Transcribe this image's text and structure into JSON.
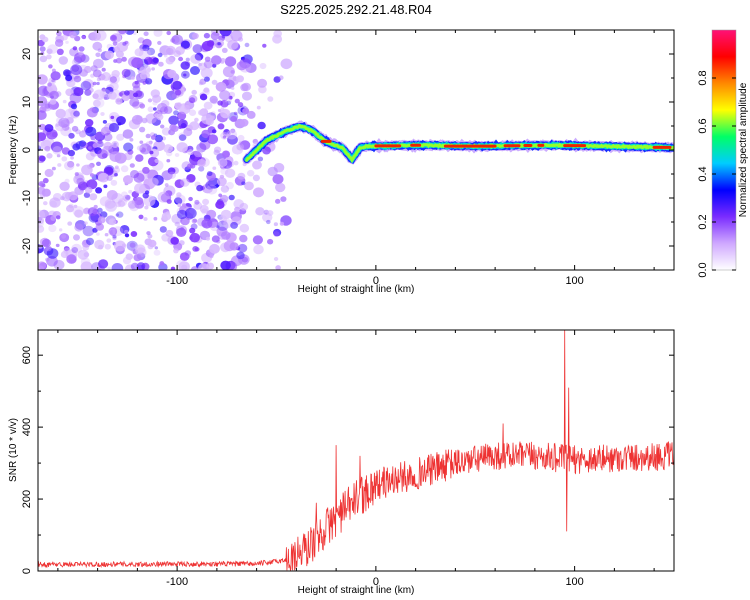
{
  "title": "S225.2025.292.21.48.R04",
  "chart_data": [
    {
      "type": "heatmap",
      "xlabel": "Height of straight line (km)",
      "ylabel": "Frequency (Hz)",
      "xlim": [
        -170,
        150
      ],
      "ylim": [
        -25,
        25
      ],
      "x_ticks": [
        -100,
        0,
        100
      ],
      "y_ticks": [
        -20,
        -10,
        0,
        10,
        20
      ],
      "colorbar": {
        "label": "Normalized spectral amplitude",
        "range": [
          0,
          1
        ],
        "ticks": [
          0.0,
          0.2,
          0.4,
          0.6,
          0.8
        ],
        "tick_labels": [
          "0.0",
          "0.2",
          "0.4",
          "0.6",
          "0.8"
        ],
        "colors": [
          "#ffffff",
          "#cfa8ff",
          "#7a2cff",
          "#0000ff",
          "#00ccff",
          "#00ff66",
          "#ffff00",
          "#ff8800",
          "#ff0000",
          "#ff1177"
        ]
      },
      "ridge": {
        "x": [
          -65,
          -55,
          -45,
          -38,
          -32,
          -26,
          -22,
          -17,
          -12,
          -8,
          -4,
          0,
          20,
          50,
          90,
          150
        ],
        "freq": [
          -2,
          2,
          4,
          5,
          4,
          2,
          1.2,
          0.5,
          -2,
          0.5,
          0.8,
          0.8,
          1,
          0.8,
          1,
          0.5
        ]
      },
      "noise_region": [
        -170,
        -65
      ]
    },
    {
      "type": "line",
      "xlabel": "Height of straight line (km)",
      "ylabel": "SNR (10 * v/v)",
      "xlim": [
        -170,
        150
      ],
      "ylim": [
        0,
        670
      ],
      "x_ticks": [
        -100,
        0,
        100
      ],
      "y_ticks": [
        0,
        200,
        400,
        600
      ],
      "color": "#ee3333",
      "trend": {
        "x": [
          -170,
          -60,
          -45,
          -35,
          -25,
          -10,
          0,
          20,
          40,
          60,
          80,
          100,
          150
        ],
        "snr": [
          18,
          20,
          30,
          60,
          120,
          200,
          240,
          270,
          300,
          320,
          320,
          310,
          320
        ]
      },
      "spikes": [
        {
          "x": -30,
          "snr": 190
        },
        {
          "x": -20,
          "snr": 350
        },
        {
          "x": -8,
          "snr": 320
        },
        {
          "x": 64,
          "snr": 410
        },
        {
          "x": 95,
          "snr": 670
        },
        {
          "x": 96,
          "snr": 110
        },
        {
          "x": 97,
          "snr": 510
        }
      ]
    }
  ]
}
